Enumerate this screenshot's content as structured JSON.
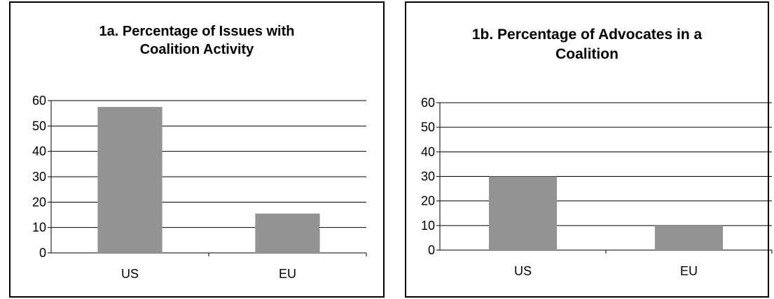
{
  "chart_data": [
    {
      "type": "bar",
      "title_lines": [
        "1a. Percentage of Issues with",
        "Coalition Activity"
      ],
      "categories": [
        "US",
        "EU"
      ],
      "values": [
        57.5,
        15.5
      ],
      "ylim": [
        0,
        60
      ],
      "yticks": [
        0,
        10,
        20,
        30,
        40,
        50,
        60
      ],
      "grid": true,
      "bar_color": "#939393"
    },
    {
      "type": "bar",
      "title_lines": [
        "1b. Percentage of Advocates in a",
        "Coalition"
      ],
      "categories": [
        "US",
        "EU"
      ],
      "values": [
        30,
        10
      ],
      "ylim": [
        0,
        60
      ],
      "yticks": [
        0,
        10,
        20,
        30,
        40,
        50,
        60
      ],
      "grid": true,
      "bar_color": "#939393"
    }
  ]
}
